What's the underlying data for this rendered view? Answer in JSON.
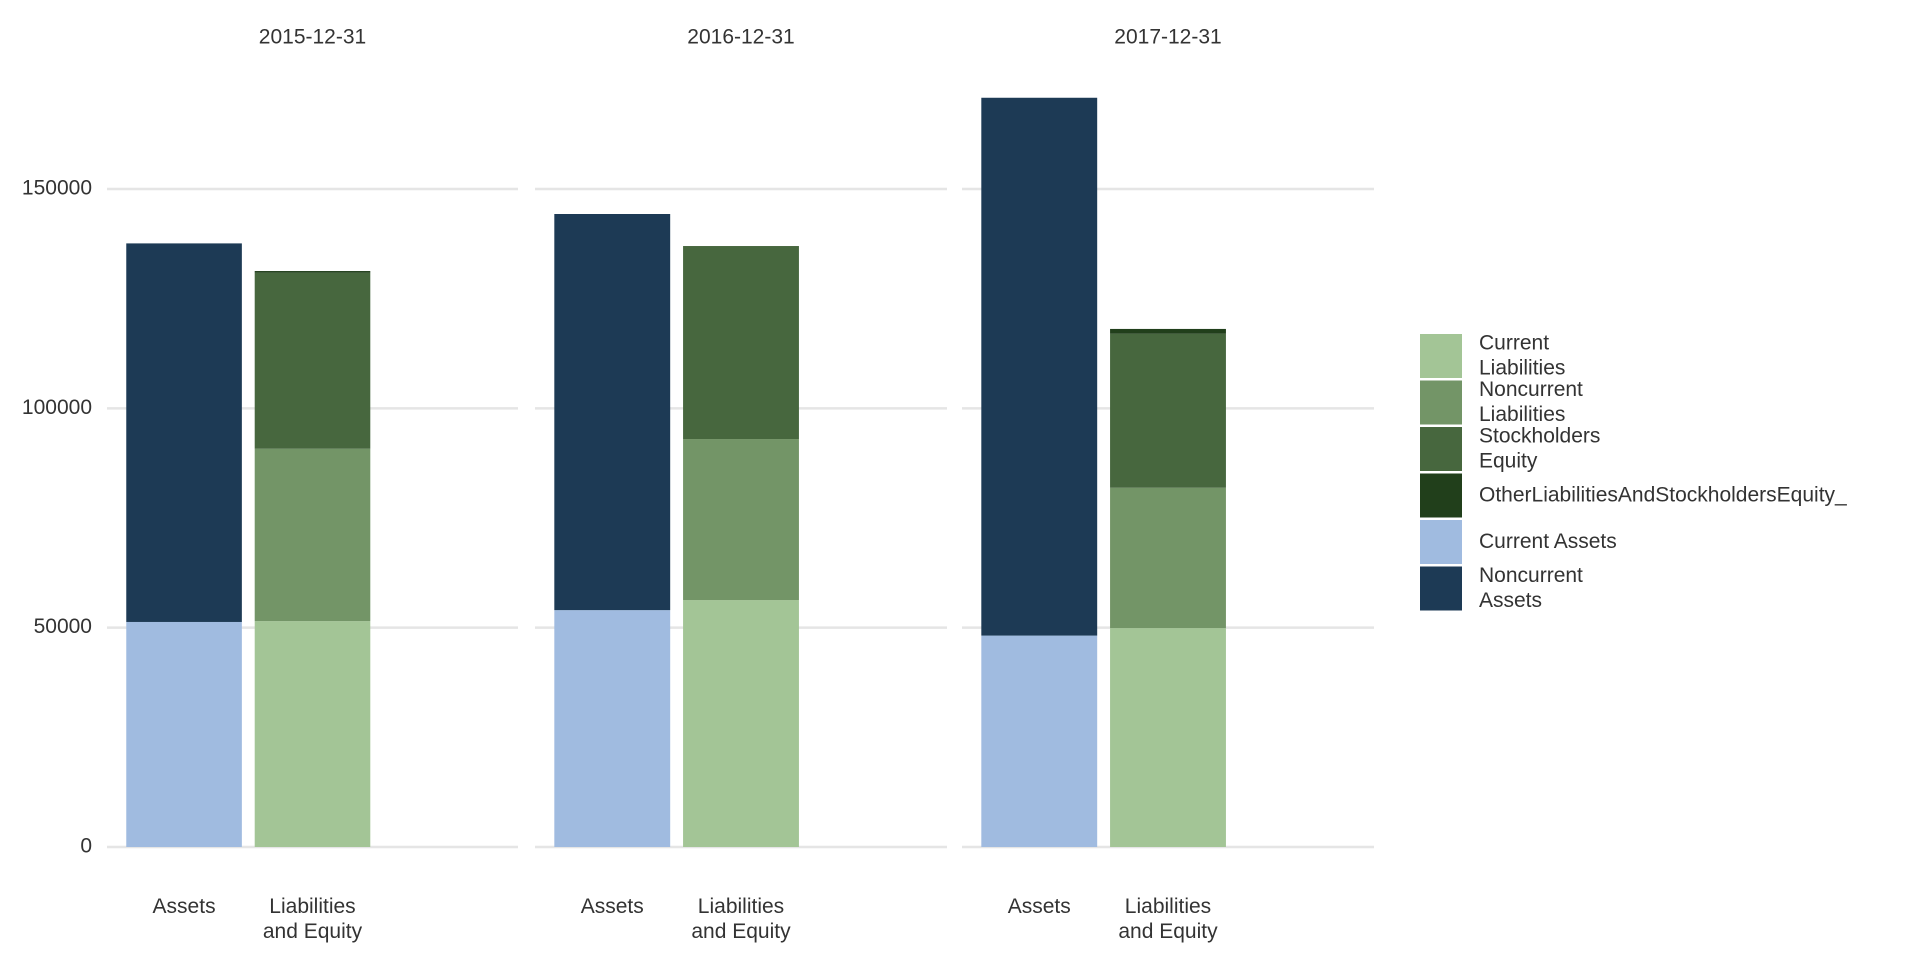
{
  "chart_data": {
    "type": "bar",
    "stacked": true,
    "facets": [
      "2015-12-31",
      "2016-12-31",
      "2017-12-31"
    ],
    "categories": [
      "Assets",
      "Liabilities and Equity"
    ],
    "series": [
      {
        "name": "Current Liabilities",
        "color": "#a3c596",
        "values": [
          [
            null,
            51500
          ],
          [
            null,
            56300
          ],
          [
            null,
            49900
          ]
        ]
      },
      {
        "name": "Noncurrent Liabilities",
        "color": "#739567",
        "values": [
          [
            null,
            39300
          ],
          [
            null,
            36700
          ],
          [
            null,
            32000
          ]
        ]
      },
      {
        "name": "Stockholders Equity",
        "color": "#47673e",
        "values": [
          [
            null,
            40100
          ],
          [
            null,
            44000
          ],
          [
            null,
            35100
          ]
        ]
      },
      {
        "name": "OtherLiabilitiesAndStockholdersEquity_",
        "color": "#213f1b",
        "values": [
          [
            null,
            400
          ],
          [
            null,
            0
          ],
          [
            null,
            1100
          ]
        ]
      },
      {
        "name": "Current Assets",
        "color": "#a0bbe0",
        "values": [
          [
            51300,
            null
          ],
          [
            54000,
            null
          ],
          [
            48200,
            null
          ]
        ]
      },
      {
        "name": "Noncurrent Assets",
        "color": "#1d3a55",
        "values": [
          [
            86300,
            null
          ],
          [
            90300,
            null
          ],
          [
            122600,
            null
          ]
        ]
      }
    ],
    "ylim": [
      0,
      175000
    ],
    "yticks": [
      0,
      50000,
      100000,
      150000
    ],
    "grid": true,
    "legend": "right"
  }
}
